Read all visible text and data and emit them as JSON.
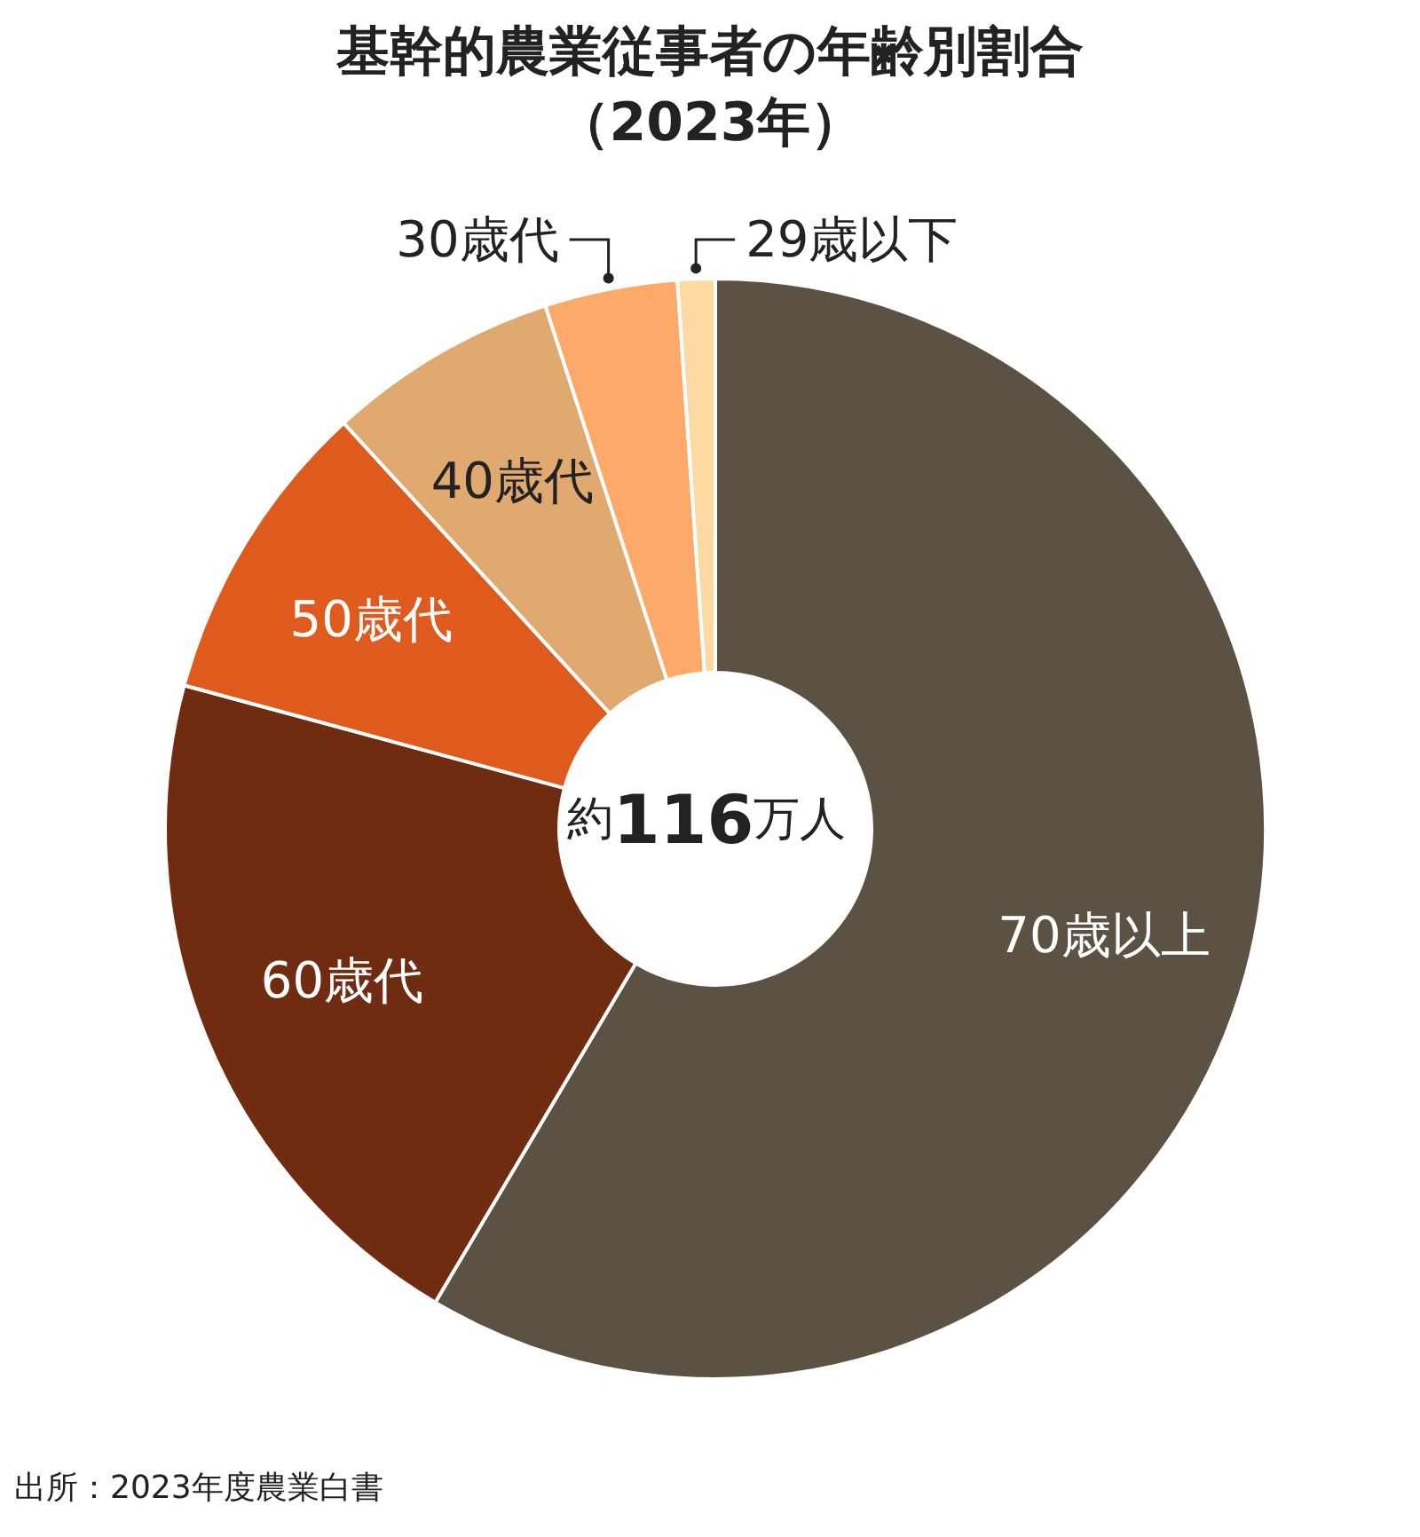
{
  "chart_data": {
    "type": "donut",
    "title": "基幹的農業従事者の年齢別割合（2023年）",
    "categories": [
      "70歳以上",
      "60歳代",
      "50歳代",
      "40歳代",
      "30歳代",
      "29歳以下"
    ],
    "values": [
      58.5,
      20.7,
      9.0,
      6.8,
      3.9,
      1.1
    ],
    "colors": [
      "#5b5244",
      "#6f2c10",
      "#de5a1d",
      "#e0a970",
      "#fca96a",
      "#fdd9a4"
    ],
    "annotations": [
      "約116万人",
      "出所：2023年度農業白書"
    ]
  }
}
